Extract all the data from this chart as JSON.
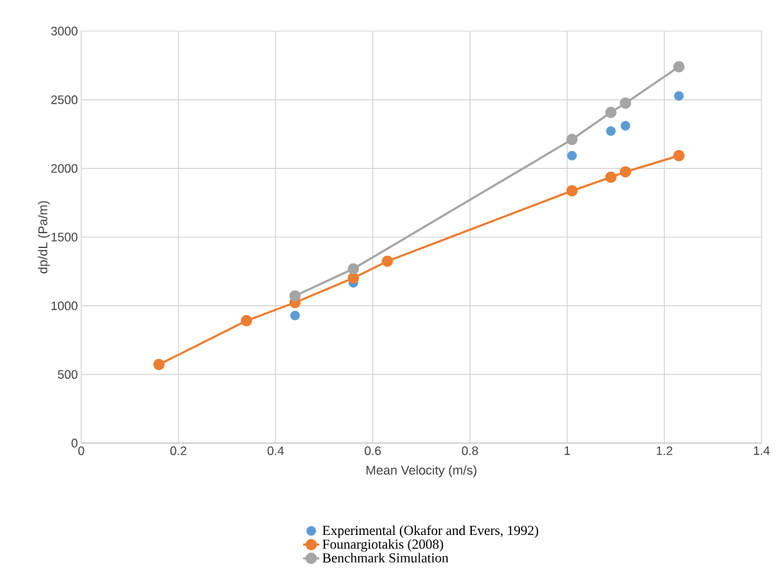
{
  "chart_data": {
    "type": "line",
    "xlabel": "Mean Velocity (m/s)",
    "ylabel": "dp/dL (Pa/m)",
    "xlim": [
      0,
      1.4
    ],
    "xticks": [
      0,
      0.2,
      0.4,
      0.6,
      0.8,
      1,
      1.2,
      1.4
    ],
    "ylim": [
      0,
      3000
    ],
    "yticks": [
      0,
      500,
      1000,
      1500,
      2000,
      2500,
      3000
    ],
    "grid": true,
    "legend": "bottom",
    "marker": "circle",
    "line_style": "solid",
    "series": [
      {
        "name": "Experimental (Okafor and Evers, 1992)",
        "type": "scatter",
        "color": "#5b9bd5",
        "x": [
          0.44,
          0.56,
          1.01,
          1.09,
          1.12,
          1.23
        ],
        "values": [
          929,
          1167,
          2093,
          2272,
          2311,
          2528
        ]
      },
      {
        "name": "Founargiotakis (2008)",
        "color": "#ed7d31",
        "x": [
          0.16,
          0.34,
          0.44,
          0.56,
          0.63,
          1.01,
          1.09,
          1.12,
          1.23
        ],
        "values": [
          572,
          891,
          1023,
          1202,
          1324,
          1837,
          1936,
          1975,
          2093
        ]
      },
      {
        "name": "Benchmark Simulation",
        "color": "#a5a5a5",
        "x": [
          0.44,
          0.56,
          1.01,
          1.09,
          1.12,
          1.23
        ],
        "values": [
          1072,
          1269,
          2211,
          2408,
          2475,
          2740
        ]
      }
    ]
  }
}
